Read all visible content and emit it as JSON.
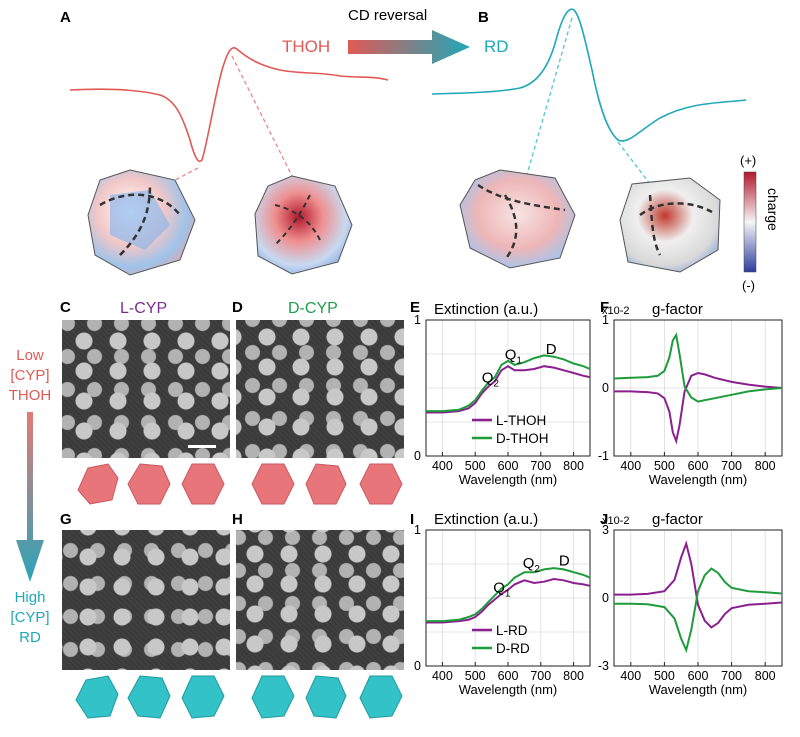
{
  "panel_letters": [
    "A",
    "B",
    "C",
    "D",
    "E",
    "F",
    "G",
    "H",
    "I",
    "J"
  ],
  "top": {
    "cd_reversal_label": "CD reversal",
    "thoh_label": "THOH",
    "rd_label": "RD",
    "charge_label": "charge",
    "charge_plus": "(+)",
    "charge_minus": "(-)",
    "colors": {
      "thoh": "#e05a55",
      "rd": "#1fa8b8",
      "charge_pos": "#b2182b",
      "charge_neg": "#2c3e9e"
    }
  },
  "sem": {
    "c_title": "L-CYP",
    "d_title": "D-CYP",
    "title_colors": {
      "l": "#7b2d8e",
      "d": "#1f9e4a"
    },
    "side_top": [
      "Low",
      "[CYP]",
      "THOH"
    ],
    "side_bottom": [
      "High",
      "[CYP]",
      "RD"
    ],
    "model_colors": {
      "thoh": "#e8757a",
      "rd": "#33c2c8"
    }
  },
  "chart_data": [
    {
      "panel": "E",
      "type": "line",
      "title": "Extinction (a.u.)",
      "xlabel": "Wavelength (nm)",
      "ylabel": "",
      "xlim": [
        350,
        850
      ],
      "ylim": [
        0,
        1
      ],
      "xticks": [
        400,
        500,
        600,
        700,
        800
      ],
      "yticks": [
        0,
        1
      ],
      "annotations": [
        {
          "text": "Q",
          "sub": "2",
          "x": 520,
          "y": 0.54
        },
        {
          "text": "Q",
          "sub": "1",
          "x": 590,
          "y": 0.71
        },
        {
          "text": "D",
          "x": 715,
          "y": 0.75
        }
      ],
      "legend": "bottom-right",
      "series": [
        {
          "name": "L-THOH",
          "color": "#8b1f8f",
          "x": [
            350,
            400,
            450,
            480,
            500,
            520,
            540,
            560,
            580,
            600,
            620,
            650,
            680,
            710,
            740,
            770,
            800,
            830,
            850
          ],
          "y": [
            0.32,
            0.32,
            0.33,
            0.35,
            0.39,
            0.46,
            0.51,
            0.55,
            0.63,
            0.66,
            0.63,
            0.63,
            0.64,
            0.66,
            0.65,
            0.63,
            0.61,
            0.59,
            0.58
          ]
        },
        {
          "name": "D-THOH",
          "color": "#1e9c3c",
          "x": [
            350,
            400,
            450,
            480,
            500,
            520,
            540,
            560,
            580,
            600,
            620,
            650,
            680,
            710,
            740,
            770,
            800,
            830,
            850
          ],
          "y": [
            0.33,
            0.33,
            0.34,
            0.37,
            0.41,
            0.48,
            0.54,
            0.58,
            0.67,
            0.7,
            0.67,
            0.69,
            0.72,
            0.74,
            0.73,
            0.71,
            0.68,
            0.66,
            0.64
          ]
        }
      ]
    },
    {
      "panel": "F",
      "type": "line",
      "title": "g-factor",
      "scale_label": "x10-2",
      "xlabel": "Wavelength (nm)",
      "ylabel": "",
      "xlim": [
        350,
        850
      ],
      "ylim": [
        -1,
        1
      ],
      "xticks": [
        400,
        500,
        600,
        700,
        800
      ],
      "yticks": [
        -1,
        0,
        1
      ],
      "series": [
        {
          "name": "L-THOH",
          "color": "#8b1f8f",
          "x": [
            350,
            400,
            450,
            480,
            500,
            515,
            525,
            535,
            545,
            560,
            580,
            600,
            620,
            650,
            700,
            750,
            800,
            850
          ],
          "y": [
            -0.05,
            -0.05,
            -0.06,
            -0.08,
            -0.15,
            -0.35,
            -0.65,
            -0.78,
            -0.55,
            -0.05,
            0.18,
            0.22,
            0.2,
            0.15,
            0.09,
            0.05,
            0.02,
            0.0
          ]
        },
        {
          "name": "D-THOH",
          "color": "#1e9c3c",
          "x": [
            350,
            400,
            450,
            480,
            500,
            515,
            525,
            535,
            545,
            560,
            580,
            600,
            620,
            650,
            700,
            750,
            800,
            850
          ],
          "y": [
            0.14,
            0.15,
            0.16,
            0.18,
            0.25,
            0.45,
            0.7,
            0.78,
            0.5,
            0.02,
            -0.14,
            -0.2,
            -0.18,
            -0.15,
            -0.1,
            -0.05,
            -0.02,
            0.0
          ]
        }
      ]
    },
    {
      "panel": "I",
      "type": "line",
      "title": "Extinction (a.u.)",
      "xlabel": "Wavelength (nm)",
      "ylabel": "",
      "xlim": [
        350,
        850
      ],
      "ylim": [
        0,
        1
      ],
      "xticks": [
        400,
        500,
        600,
        700,
        800
      ],
      "yticks": [
        0,
        1
      ],
      "annotations": [
        {
          "text": "Q",
          "sub": "1",
          "x": 555,
          "y": 0.54
        },
        {
          "text": "Q",
          "sub": "2",
          "x": 645,
          "y": 0.72
        },
        {
          "text": "D",
          "x": 755,
          "y": 0.74
        }
      ],
      "legend": "bottom-right",
      "series": [
        {
          "name": "L-RD",
          "color": "#8b1f8f",
          "x": [
            350,
            400,
            450,
            480,
            500,
            520,
            540,
            560,
            580,
            600,
            620,
            650,
            680,
            710,
            740,
            770,
            800,
            830,
            850
          ],
          "y": [
            0.32,
            0.32,
            0.33,
            0.34,
            0.36,
            0.4,
            0.45,
            0.49,
            0.53,
            0.56,
            0.6,
            0.63,
            0.61,
            0.62,
            0.64,
            0.63,
            0.61,
            0.6,
            0.59
          ]
        },
        {
          "name": "D-RD",
          "color": "#1e9c3c",
          "x": [
            350,
            400,
            450,
            480,
            500,
            520,
            540,
            560,
            580,
            600,
            620,
            650,
            680,
            710,
            740,
            770,
            800,
            830,
            850
          ],
          "y": [
            0.33,
            0.33,
            0.34,
            0.36,
            0.38,
            0.42,
            0.47,
            0.52,
            0.57,
            0.6,
            0.65,
            0.69,
            0.69,
            0.71,
            0.72,
            0.71,
            0.69,
            0.67,
            0.65
          ]
        }
      ]
    },
    {
      "panel": "J",
      "type": "line",
      "title": "g-factor",
      "scale_label": "x10-2",
      "xlabel": "Wavelength (nm)",
      "ylabel": "",
      "xlim": [
        350,
        850
      ],
      "ylim": [
        -3,
        3
      ],
      "xticks": [
        400,
        500,
        600,
        700,
        800
      ],
      "yticks": [
        -3,
        0,
        3
      ],
      "series": [
        {
          "name": "L-RD",
          "color": "#8b1f8f",
          "x": [
            350,
            400,
            450,
            500,
            530,
            550,
            565,
            580,
            600,
            620,
            640,
            660,
            680,
            700,
            750,
            800,
            850
          ],
          "y": [
            0.15,
            0.15,
            0.18,
            0.3,
            0.8,
            1.8,
            2.4,
            1.5,
            -0.3,
            -1.0,
            -1.3,
            -1.1,
            -0.7,
            -0.45,
            -0.3,
            -0.25,
            -0.2
          ]
        },
        {
          "name": "D-RD",
          "color": "#1e9c3c",
          "x": [
            350,
            400,
            450,
            500,
            530,
            550,
            565,
            580,
            600,
            620,
            640,
            660,
            680,
            700,
            750,
            800,
            850
          ],
          "y": [
            -0.25,
            -0.25,
            -0.28,
            -0.4,
            -0.9,
            -1.8,
            -2.3,
            -1.4,
            0.3,
            1.0,
            1.3,
            1.1,
            0.7,
            0.45,
            0.3,
            0.25,
            0.2
          ]
        }
      ]
    }
  ]
}
